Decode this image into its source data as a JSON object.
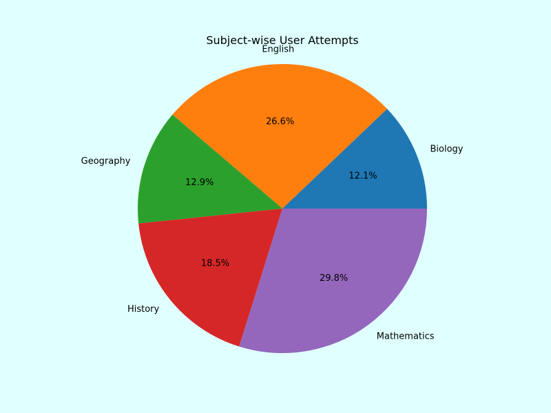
{
  "page": {
    "background_color": "#e0ffff"
  },
  "chart_data": {
    "type": "pie",
    "title": "Subject-wise User Attempts",
    "start_angle_deg": 0,
    "direction": "counterclockwise",
    "categories": [
      "Biology",
      "English",
      "Geography",
      "History",
      "Mathematics"
    ],
    "values": [
      12.1,
      26.6,
      12.9,
      18.5,
      29.8
    ],
    "percent_labels": [
      "12.1%",
      "26.6%",
      "12.9%",
      "18.5%",
      "29.8%"
    ],
    "colors": [
      "#1f77b4",
      "#ff7f0e",
      "#2ca02c",
      "#d62728",
      "#9467bd"
    ]
  }
}
